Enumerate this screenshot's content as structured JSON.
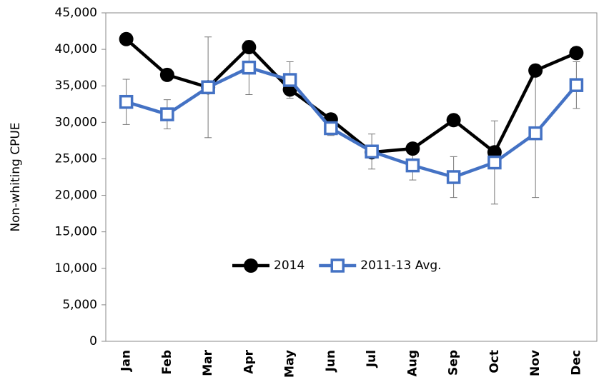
{
  "chart_data": {
    "type": "line",
    "y_label": "Non-whiting CPUE",
    "categories": [
      "Jan",
      "Feb",
      "Mar",
      "Apr",
      "May",
      "Jun",
      "Jul",
      "Aug",
      "Sep",
      "Oct",
      "Nov",
      "Dec"
    ],
    "series": [
      {
        "name": "2014",
        "color": "#000000",
        "marker": "circle",
        "values": [
          41400,
          36500,
          34800,
          40300,
          34500,
          30400,
          25900,
          26400,
          30300,
          25900,
          37100,
          39500
        ]
      },
      {
        "name": "2011-13 Avg.",
        "color": "#4472c4",
        "marker": "square",
        "values": [
          32800,
          31100,
          34800,
          37500,
          35800,
          29200,
          26000,
          24100,
          22500,
          24500,
          28500,
          35100
        ],
        "errors": [
          3100,
          2000,
          6900,
          3700,
          2500,
          1000,
          2400,
          2000,
          2800,
          5700,
          8800,
          3200
        ]
      }
    ],
    "ylim": [
      0,
      45000
    ],
    "yticks": [
      0,
      {
        "value": 5000,
        "label": "5,000"
      },
      {
        "value": 10000,
        "label": "10,000"
      },
      {
        "value": 15000,
        "label": "15,000"
      },
      {
        "value": 20000,
        "label": "20,000"
      },
      {
        "value": 25000,
        "label": "25,000"
      },
      {
        "value": 30000,
        "label": "30,000"
      },
      {
        "value": 35000,
        "label": "35,000"
      },
      {
        "value": 40000,
        "label": "40,000"
      },
      {
        "value": 45000,
        "label": "45,000"
      }
    ],
    "grid": false
  }
}
